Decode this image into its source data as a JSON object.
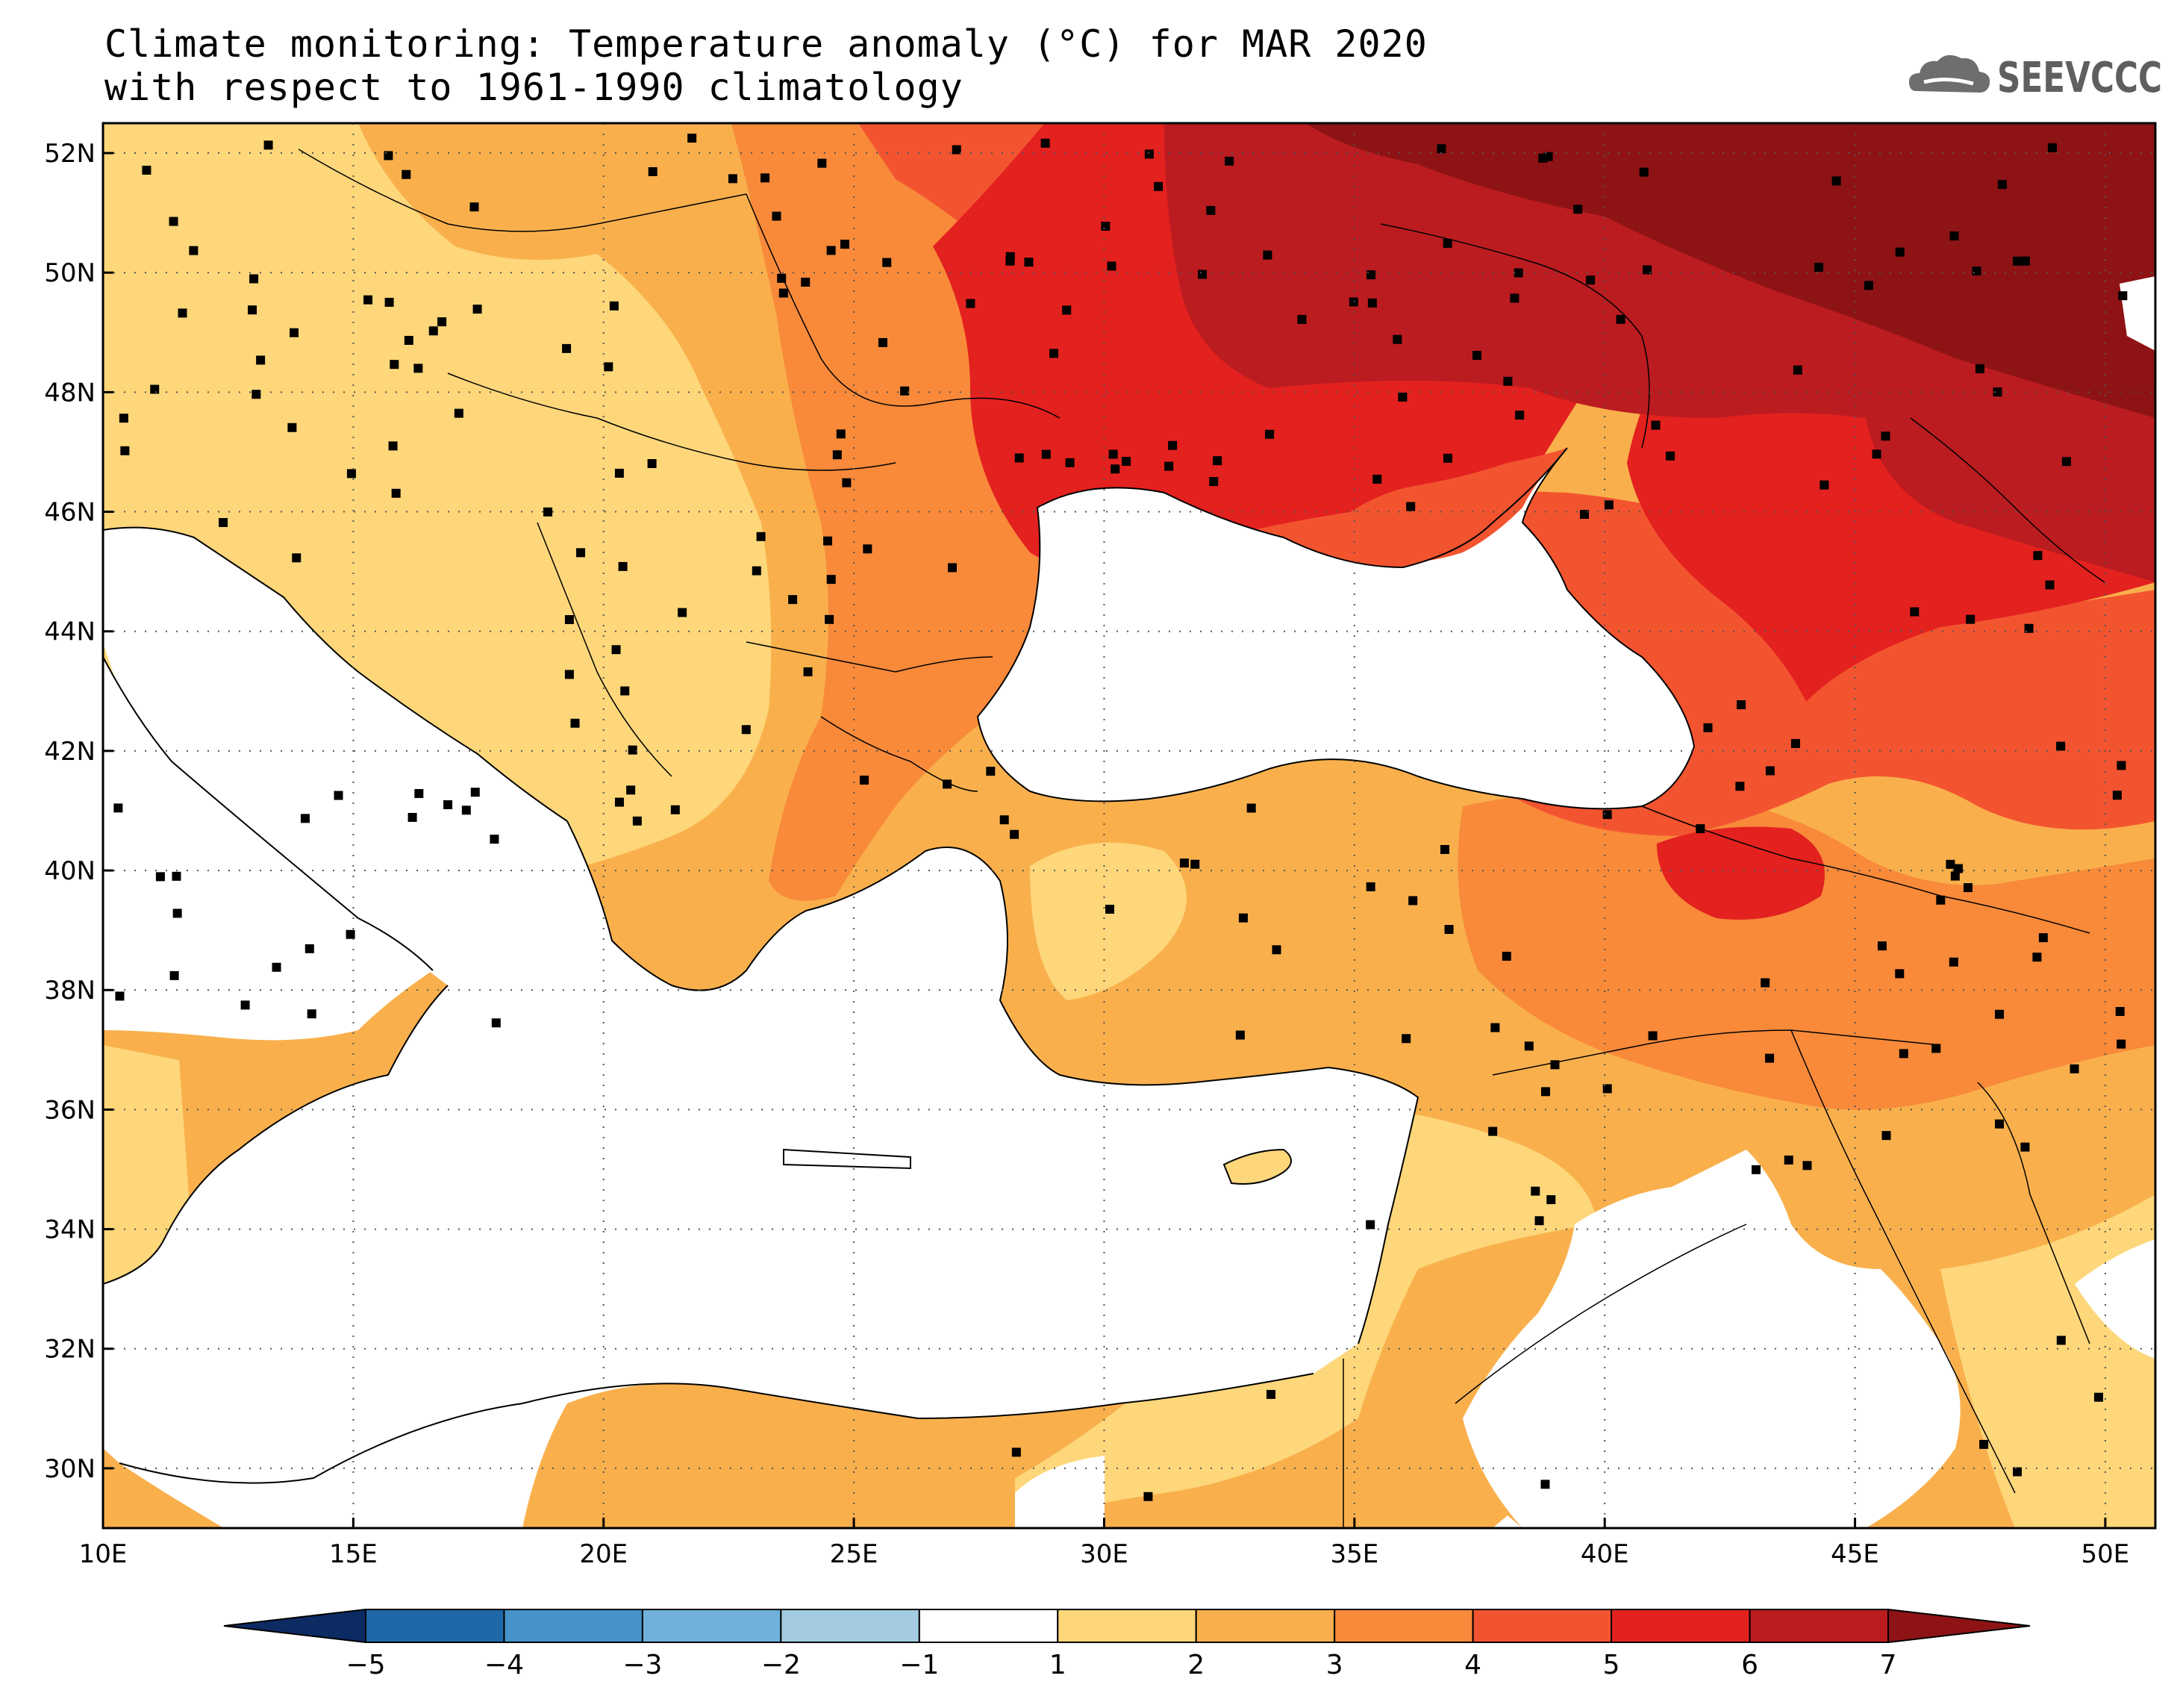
{
  "title": {
    "line1": "Climate monitoring: Temperature anomaly (°C) for MAR 2020",
    "line2": "with respect to 1961-1990 climatology"
  },
  "logo": {
    "text": "SEEVCCC",
    "icon": "cloud-icon",
    "color": "#6e6e6e"
  },
  "map": {
    "lon_range": [
      10,
      51
    ],
    "lat_range": [
      29,
      52.5
    ],
    "lon_ticks": [
      "10E",
      "15E",
      "20E",
      "25E",
      "30E",
      "35E",
      "40E",
      "45E",
      "50E"
    ],
    "lat_ticks": [
      "30N",
      "32N",
      "34N",
      "36N",
      "38N",
      "40N",
      "42N",
      "44N",
      "46N",
      "48N",
      "50N",
      "52N"
    ],
    "gridlines": "dotted",
    "station_marker": "black-square"
  },
  "colorbar": {
    "labels": [
      "-5",
      "-4",
      "-3",
      "-2",
      "-1",
      "1",
      "2",
      "3",
      "4",
      "5",
      "6",
      "7"
    ],
    "colors": [
      "#0b2b62",
      "#1f68a8",
      "#4593c8",
      "#6fb1da",
      "#a3cce2",
      "#ffffff",
      "#fdd77a",
      "#f9b04c",
      "#f88a3a",
      "#f35430",
      "#e3211f",
      "#bb1c20",
      "#8e1315"
    ]
  }
}
